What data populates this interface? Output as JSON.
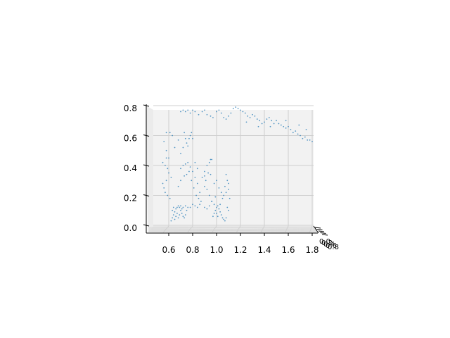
{
  "chart_data": {
    "type": "scatter",
    "projection": "3d",
    "title": "",
    "xlabel": "",
    "ylabel": "",
    "zlabel": "",
    "x_ticks": [
      "0.6",
      "0.8",
      "1.0",
      "1.2",
      "1.4",
      "1.6",
      "1.8"
    ],
    "z_ticks": [
      "0.0",
      "0.2",
      "0.4",
      "0.6",
      "0.8"
    ],
    "y_ticks": [
      "0.0",
      "0.2",
      "0.4",
      "0.6",
      "0.8"
    ],
    "xlim": [
      0.45,
      1.82
    ],
    "zlim": [
      0.0,
      0.8
    ],
    "grid": true,
    "point_color": "#1f77b4",
    "points": [
      [
        0.62,
        0.03
      ],
      [
        0.63,
        0.05
      ],
      [
        0.64,
        0.07
      ],
      [
        0.65,
        0.09
      ],
      [
        0.66,
        0.11
      ],
      [
        0.67,
        0.12
      ],
      [
        0.68,
        0.13
      ],
      [
        0.69,
        0.12
      ],
      [
        0.7,
        0.1
      ],
      [
        0.71,
        0.08
      ],
      [
        0.72,
        0.06
      ],
      [
        0.73,
        0.05
      ],
      [
        0.74,
        0.07
      ],
      [
        0.75,
        0.1
      ],
      [
        0.76,
        0.12
      ],
      [
        0.66,
        0.06
      ],
      [
        0.67,
        0.08
      ],
      [
        0.68,
        0.05
      ],
      [
        0.7,
        0.13
      ],
      [
        0.72,
        0.12
      ],
      [
        0.74,
        0.13
      ],
      [
        0.63,
        0.1
      ],
      [
        0.64,
        0.12
      ],
      [
        0.69,
        0.07
      ],
      [
        0.71,
        0.11
      ],
      [
        0.65,
        0.04
      ],
      [
        0.78,
        0.12
      ],
      [
        0.8,
        0.14
      ],
      [
        0.82,
        0.13
      ],
      [
        0.84,
        0.12
      ],
      [
        0.86,
        0.14
      ],
      [
        0.9,
        0.12
      ],
      [
        0.92,
        0.11
      ],
      [
        0.94,
        0.13
      ],
      [
        0.97,
        0.06
      ],
      [
        0.98,
        0.08
      ],
      [
        0.99,
        0.1
      ],
      [
        1.0,
        0.12
      ],
      [
        1.01,
        0.13
      ],
      [
        1.02,
        0.11
      ],
      [
        1.03,
        0.09
      ],
      [
        1.04,
        0.07
      ],
      [
        1.05,
        0.05
      ],
      [
        1.06,
        0.04
      ],
      [
        1.07,
        0.03
      ],
      [
        1.08,
        0.05
      ],
      [
        1.0,
        0.08
      ],
      [
        1.01,
        0.06
      ],
      [
        1.03,
        0.14
      ],
      [
        1.05,
        0.18
      ],
      [
        1.06,
        0.2
      ],
      [
        1.08,
        0.22
      ],
      [
        1.1,
        0.24
      ],
      [
        1.04,
        0.22
      ],
      [
        1.02,
        0.25
      ],
      [
        1.09,
        0.12
      ],
      [
        1.1,
        0.1
      ],
      [
        0.98,
        0.14
      ],
      [
        0.96,
        0.16
      ],
      [
        0.56,
        0.25
      ],
      [
        0.57,
        0.22
      ],
      [
        0.59,
        0.2
      ],
      [
        0.61,
        0.18
      ],
      [
        0.55,
        0.28
      ],
      [
        0.58,
        0.3
      ],
      [
        0.55,
        0.42
      ],
      [
        0.57,
        0.4
      ],
      [
        0.59,
        0.38
      ],
      [
        0.6,
        0.35
      ],
      [
        0.62,
        0.32
      ],
      [
        0.58,
        0.45
      ],
      [
        0.7,
        0.38
      ],
      [
        0.72,
        0.4
      ],
      [
        0.74,
        0.41
      ],
      [
        0.76,
        0.42
      ],
      [
        0.78,
        0.39
      ],
      [
        0.75,
        0.34
      ],
      [
        0.73,
        0.33
      ],
      [
        0.77,
        0.36
      ],
      [
        0.79,
        0.3
      ],
      [
        0.81,
        0.25
      ],
      [
        0.83,
        0.2
      ],
      [
        0.85,
        0.18
      ],
      [
        0.86,
        0.22
      ],
      [
        0.84,
        0.28
      ],
      [
        0.82,
        0.32
      ],
      [
        0.8,
        0.36
      ],
      [
        0.82,
        0.42
      ],
      [
        0.84,
        0.38
      ],
      [
        0.7,
        0.3
      ],
      [
        0.68,
        0.26
      ],
      [
        0.88,
        0.32
      ],
      [
        0.9,
        0.36
      ],
      [
        0.92,
        0.4
      ],
      [
        0.94,
        0.42
      ],
      [
        0.95,
        0.44
      ],
      [
        0.96,
        0.44
      ],
      [
        0.93,
        0.35
      ],
      [
        0.91,
        0.3
      ],
      [
        0.9,
        0.33
      ],
      [
        0.92,
        0.24
      ],
      [
        0.94,
        0.2
      ],
      [
        0.96,
        0.16
      ],
      [
        0.98,
        0.28
      ],
      [
        1.0,
        0.3
      ],
      [
        0.9,
        0.26
      ],
      [
        0.95,
        0.34
      ],
      [
        0.73,
        0.62
      ],
      [
        0.74,
        0.58
      ],
      [
        0.75,
        0.55
      ],
      [
        0.76,
        0.53
      ],
      [
        0.77,
        0.58
      ],
      [
        0.78,
        0.6
      ],
      [
        0.79,
        0.62
      ],
      [
        0.8,
        0.58
      ],
      [
        0.72,
        0.52
      ],
      [
        0.7,
        0.48
      ],
      [
        0.65,
        0.52
      ],
      [
        0.68,
        0.57
      ],
      [
        0.63,
        0.6
      ],
      [
        0.61,
        0.62
      ],
      [
        0.6,
        0.45
      ],
      [
        0.58,
        0.5
      ],
      [
        0.7,
        0.76
      ],
      [
        0.72,
        0.77
      ],
      [
        0.74,
        0.76
      ],
      [
        0.76,
        0.77
      ],
      [
        0.78,
        0.75
      ],
      [
        0.8,
        0.77
      ],
      [
        0.82,
        0.76
      ],
      [
        0.85,
        0.74
      ],
      [
        0.88,
        0.76
      ],
      [
        0.9,
        0.77
      ],
      [
        0.92,
        0.74
      ],
      [
        0.95,
        0.73
      ],
      [
        0.97,
        0.72
      ],
      [
        1.0,
        0.76
      ],
      [
        1.02,
        0.77
      ],
      [
        1.04,
        0.75
      ],
      [
        1.06,
        0.72
      ],
      [
        1.08,
        0.71
      ],
      [
        1.1,
        0.73
      ],
      [
        1.12,
        0.75
      ],
      [
        1.14,
        0.78
      ],
      [
        1.16,
        0.79
      ],
      [
        1.18,
        0.78
      ],
      [
        1.2,
        0.77
      ],
      [
        1.22,
        0.76
      ],
      [
        1.24,
        0.75
      ],
      [
        1.26,
        0.73
      ],
      [
        1.28,
        0.72
      ],
      [
        1.3,
        0.74
      ],
      [
        1.32,
        0.73
      ],
      [
        1.34,
        0.71
      ],
      [
        1.36,
        0.7
      ],
      [
        1.38,
        0.68
      ],
      [
        1.4,
        0.69
      ],
      [
        1.42,
        0.71
      ],
      [
        1.44,
        0.72
      ],
      [
        1.46,
        0.7
      ],
      [
        1.48,
        0.68
      ],
      [
        1.5,
        0.7
      ],
      [
        1.52,
        0.68
      ],
      [
        1.54,
        0.67
      ],
      [
        1.56,
        0.66
      ],
      [
        1.58,
        0.65
      ],
      [
        1.6,
        0.66
      ],
      [
        1.62,
        0.64
      ],
      [
        1.64,
        0.62
      ],
      [
        1.66,
        0.63
      ],
      [
        1.68,
        0.61
      ],
      [
        1.7,
        0.6
      ],
      [
        1.72,
        0.58
      ],
      [
        1.74,
        0.59
      ],
      [
        1.76,
        0.57
      ],
      [
        1.78,
        0.57
      ],
      [
        1.8,
        0.56
      ],
      [
        1.75,
        0.64
      ],
      [
        1.69,
        0.67
      ],
      [
        1.58,
        0.7
      ],
      [
        1.45,
        0.66
      ],
      [
        1.35,
        0.66
      ],
      [
        1.25,
        0.69
      ],
      [
        0.58,
        0.62
      ],
      [
        0.56,
        0.56
      ],
      [
        1.08,
        0.34
      ],
      [
        1.09,
        0.3
      ],
      [
        1.1,
        0.28
      ],
      [
        1.07,
        0.26
      ],
      [
        0.99,
        0.19
      ],
      [
        1.11,
        0.18
      ],
      [
        0.87,
        0.16
      ]
    ]
  }
}
